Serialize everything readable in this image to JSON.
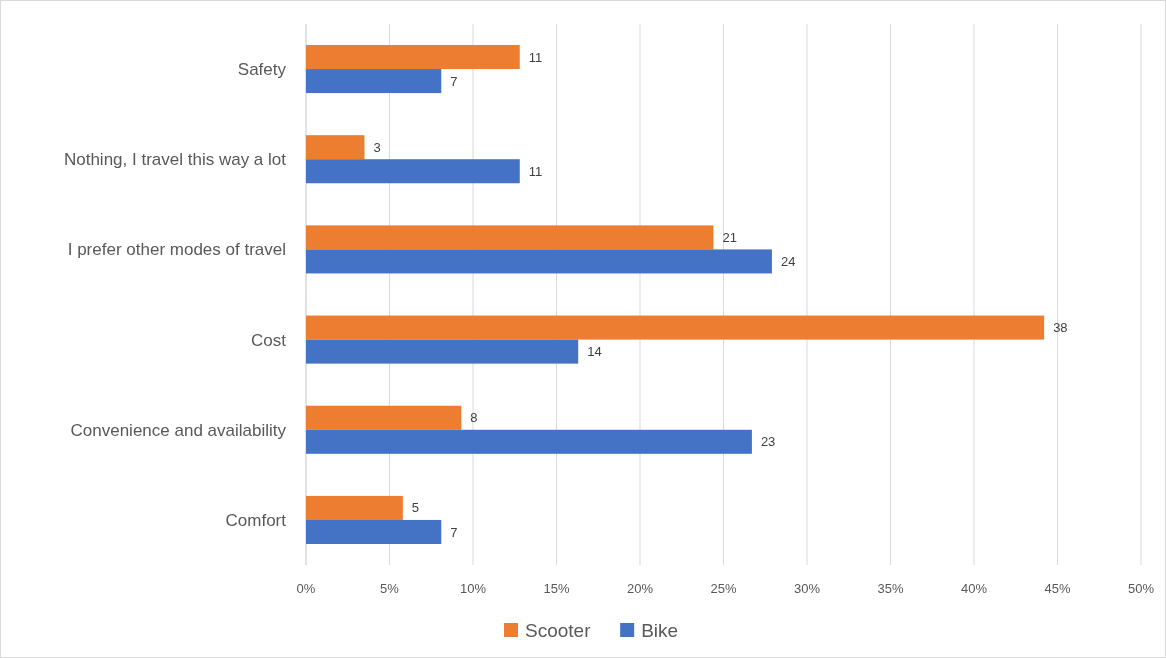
{
  "chart_data": {
    "type": "bar",
    "orientation": "horizontal",
    "categories": [
      "Safety",
      "Nothing, I travel this way a lot",
      "I prefer other modes of travel",
      "Cost",
      "Convenience and availability",
      "Comfort"
    ],
    "series": [
      {
        "name": "Scooter",
        "color": "#ed7d31",
        "values": [
          12.8,
          3.5,
          24.4,
          44.2,
          9.3,
          5.8
        ]
      },
      {
        "name": "Bike",
        "color": "#4472c4",
        "values": [
          8.1,
          12.8,
          27.9,
          16.3,
          26.7,
          8.1
        ]
      }
    ],
    "annotations": [
      {
        "text": "11",
        "x": 12.8,
        "y": "Safety"
      },
      {
        "text": "3",
        "x": 3.5,
        "y": "Nothing, I travel this way a lot"
      },
      {
        "text": "21",
        "x": 24.4,
        "y": "I prefer other modes of travel"
      },
      {
        "text": "38",
        "x": 44.2,
        "y": "Cost"
      },
      {
        "text": "8",
        "x": 9.3,
        "y": "Convenience and availability"
      },
      {
        "text": "5",
        "x": 5.8,
        "y": "Comfort"
      },
      {
        "text": "7",
        "x": 8.1,
        "y": "Safety"
      },
      {
        "text": "11",
        "x": 12.8,
        "y": "Nothing, I travel this way a lot"
      },
      {
        "text": "24",
        "x": 27.9,
        "y": "I prefer other modes of travel"
      },
      {
        "text": "14",
        "x": 16.3,
        "y": "Cost"
      },
      {
        "text": "23",
        "x": 26.7,
        "y": "Convenience and availability"
      },
      {
        "text": "7",
        "x": 8.1,
        "y": "Comfort"
      }
    ],
    "xlim": [
      0,
      50
    ],
    "xticks": [
      {
        "value": 0,
        "label": "0%"
      },
      {
        "value": 5,
        "label": "5%"
      },
      {
        "value": 10,
        "label": "10%"
      },
      {
        "value": 15,
        "label": "15%"
      },
      {
        "value": 20,
        "label": "20%"
      },
      {
        "value": 25,
        "label": "25%"
      },
      {
        "value": 30,
        "label": "30%"
      },
      {
        "value": 35,
        "label": "35%"
      },
      {
        "value": 40,
        "label": "40%"
      },
      {
        "value": 45,
        "label": "45%"
      },
      {
        "value": 50,
        "label": "50%"
      }
    ],
    "grid": "x",
    "legend": "bottom"
  }
}
